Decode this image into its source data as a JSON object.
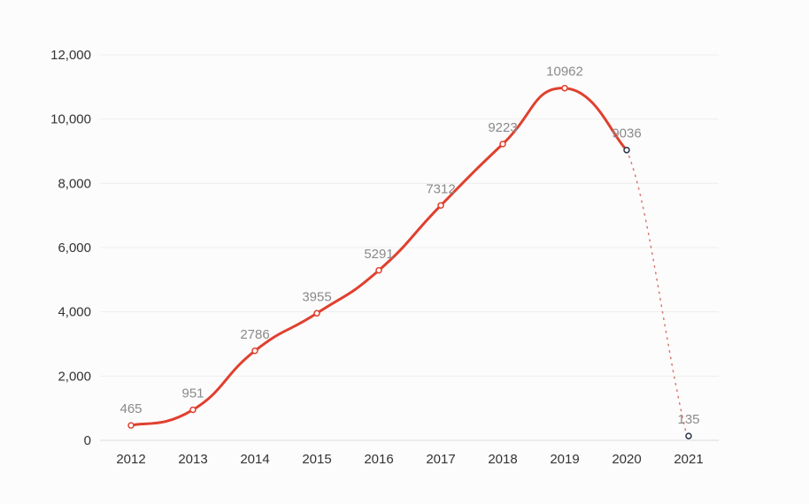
{
  "chart_data": {
    "type": "line",
    "title": "",
    "xlabel": "",
    "ylabel": "",
    "categories": [
      "2012",
      "2013",
      "2014",
      "2015",
      "2016",
      "2017",
      "2018",
      "2019",
      "2020",
      "2021"
    ],
    "values": [
      465,
      951,
      2786,
      3955,
      5291,
      7312,
      9223,
      10962,
      9036,
      135
    ],
    "data_labels": [
      "465",
      "951",
      "2786",
      "3955",
      "5291",
      "7312",
      "9223",
      "10962",
      "9036",
      "135"
    ],
    "projected_from_index": 8,
    "ylim": [
      0,
      12000
    ],
    "yticks": [
      0,
      2000,
      4000,
      6000,
      8000,
      10000,
      12000
    ],
    "ytick_labels": [
      "0",
      "2,000",
      "4,000",
      "6,000",
      "8,000",
      "10,000",
      "12,000"
    ],
    "grid": true,
    "colors": {
      "line": "#e0402e",
      "dotted": "#d9776c",
      "marker_projected": "#2b3440",
      "grid": "#eeeeee"
    }
  }
}
